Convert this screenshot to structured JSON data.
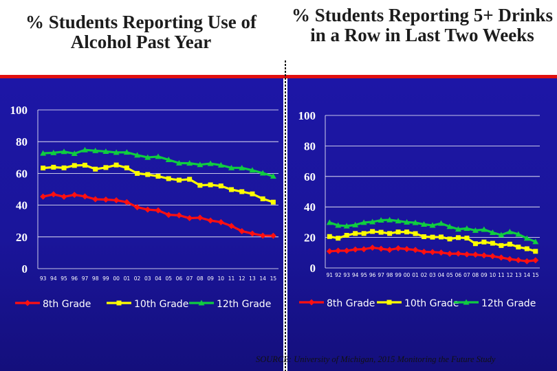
{
  "left_title": "% Students Reporting Use of Alcohol Past Year",
  "right_title": "% Students Reporting 5+ Drinks in a Row in Last Two Weeks",
  "source": "SOURCE: University of Michigan, 2015 Monitoring the Future Study",
  "colors": {
    "background": "#1a159a",
    "grid": "#ffffff",
    "axis_text": "#ffffff",
    "grade8": "#ff1010",
    "grade10": "#ffff00",
    "grade12": "#10cc40"
  },
  "chart_data": [
    {
      "type": "line",
      "title": "% Students Reporting Use of Alcohol Past Year",
      "categories": [
        "93",
        "94",
        "95",
        "96",
        "97",
        "98",
        "99",
        "00",
        "01",
        "02",
        "03",
        "04",
        "05",
        "06",
        "07",
        "08",
        "09",
        "10",
        "11",
        "12",
        "13",
        "14",
        "15"
      ],
      "ylim": [
        0,
        100
      ],
      "yticks": [
        "0",
        "20",
        "40",
        "60",
        "80",
        "100"
      ],
      "grid": true,
      "legend": "bottom",
      "series": [
        {
          "name": "8th Grade",
          "values": [
            45.4,
            46.8,
            45.3,
            46.5,
            45.5,
            43.7,
            43.5,
            43.1,
            41.9,
            38.7,
            37.2,
            36.7,
            33.9,
            33.6,
            31.8,
            32.1,
            30.3,
            29.3,
            26.9,
            23.6,
            22.1,
            20.8,
            20.7
          ]
        },
        {
          "name": "10th Grade",
          "values": [
            63.4,
            63.9,
            63.5,
            65.0,
            65.2,
            62.7,
            63.7,
            65.3,
            63.5,
            60.0,
            59.3,
            58.2,
            56.7,
            55.8,
            56.3,
            52.5,
            52.8,
            52.1,
            49.8,
            48.5,
            47.1,
            44.0,
            41.9
          ]
        },
        {
          "name": "12th Grade",
          "values": [
            72.7,
            73.0,
            73.7,
            72.5,
            74.8,
            74.3,
            73.8,
            73.2,
            73.3,
            71.5,
            70.1,
            70.6,
            68.6,
            66.5,
            66.4,
            65.5,
            66.2,
            65.2,
            63.5,
            63.5,
            62.0,
            60.2,
            58.2
          ]
        }
      ]
    },
    {
      "type": "line",
      "title": "% Students Reporting 5+ Drinks in a Row in Last Two Weeks",
      "categories": [
        "91",
        "92",
        "93",
        "94",
        "95",
        "96",
        "97",
        "98",
        "99",
        "00",
        "01",
        "02",
        "03",
        "04",
        "05",
        "06",
        "07",
        "08",
        "09",
        "10",
        "11",
        "12",
        "13",
        "14",
        "15"
      ],
      "ylim": [
        0,
        100
      ],
      "yticks": [
        "0",
        "20",
        "40",
        "60",
        "80",
        "100"
      ],
      "grid": true,
      "legend": "bottom",
      "series": [
        {
          "name": "8th Grade",
          "values": [
            10.9,
            11.3,
            11.3,
            12.1,
            12.3,
            13.3,
            12.6,
            11.9,
            12.9,
            12.4,
            11.8,
            10.6,
            10.4,
            10.1,
            9.3,
            9.4,
            8.9,
            8.7,
            8.2,
            7.7,
            6.8,
            5.8,
            5.1,
            4.4,
            5.0
          ]
        },
        {
          "name": "10th Grade",
          "values": [
            20.6,
            19.5,
            21.4,
            22.6,
            22.6,
            23.9,
            23.4,
            22.6,
            23.6,
            23.6,
            22.5,
            20.5,
            20.2,
            20.3,
            19.0,
            19.9,
            19.6,
            15.9,
            17.0,
            16.2,
            14.7,
            15.6,
            13.7,
            12.6,
            10.9
          ]
        },
        {
          "name": "12th Grade",
          "values": [
            29.8,
            27.9,
            27.5,
            28.2,
            29.8,
            30.2,
            31.3,
            31.5,
            30.8,
            30.0,
            29.7,
            28.6,
            27.9,
            29.2,
            27.1,
            25.4,
            25.9,
            24.6,
            25.2,
            23.2,
            21.6,
            23.7,
            22.1,
            19.4,
            17.2
          ]
        }
      ]
    }
  ]
}
